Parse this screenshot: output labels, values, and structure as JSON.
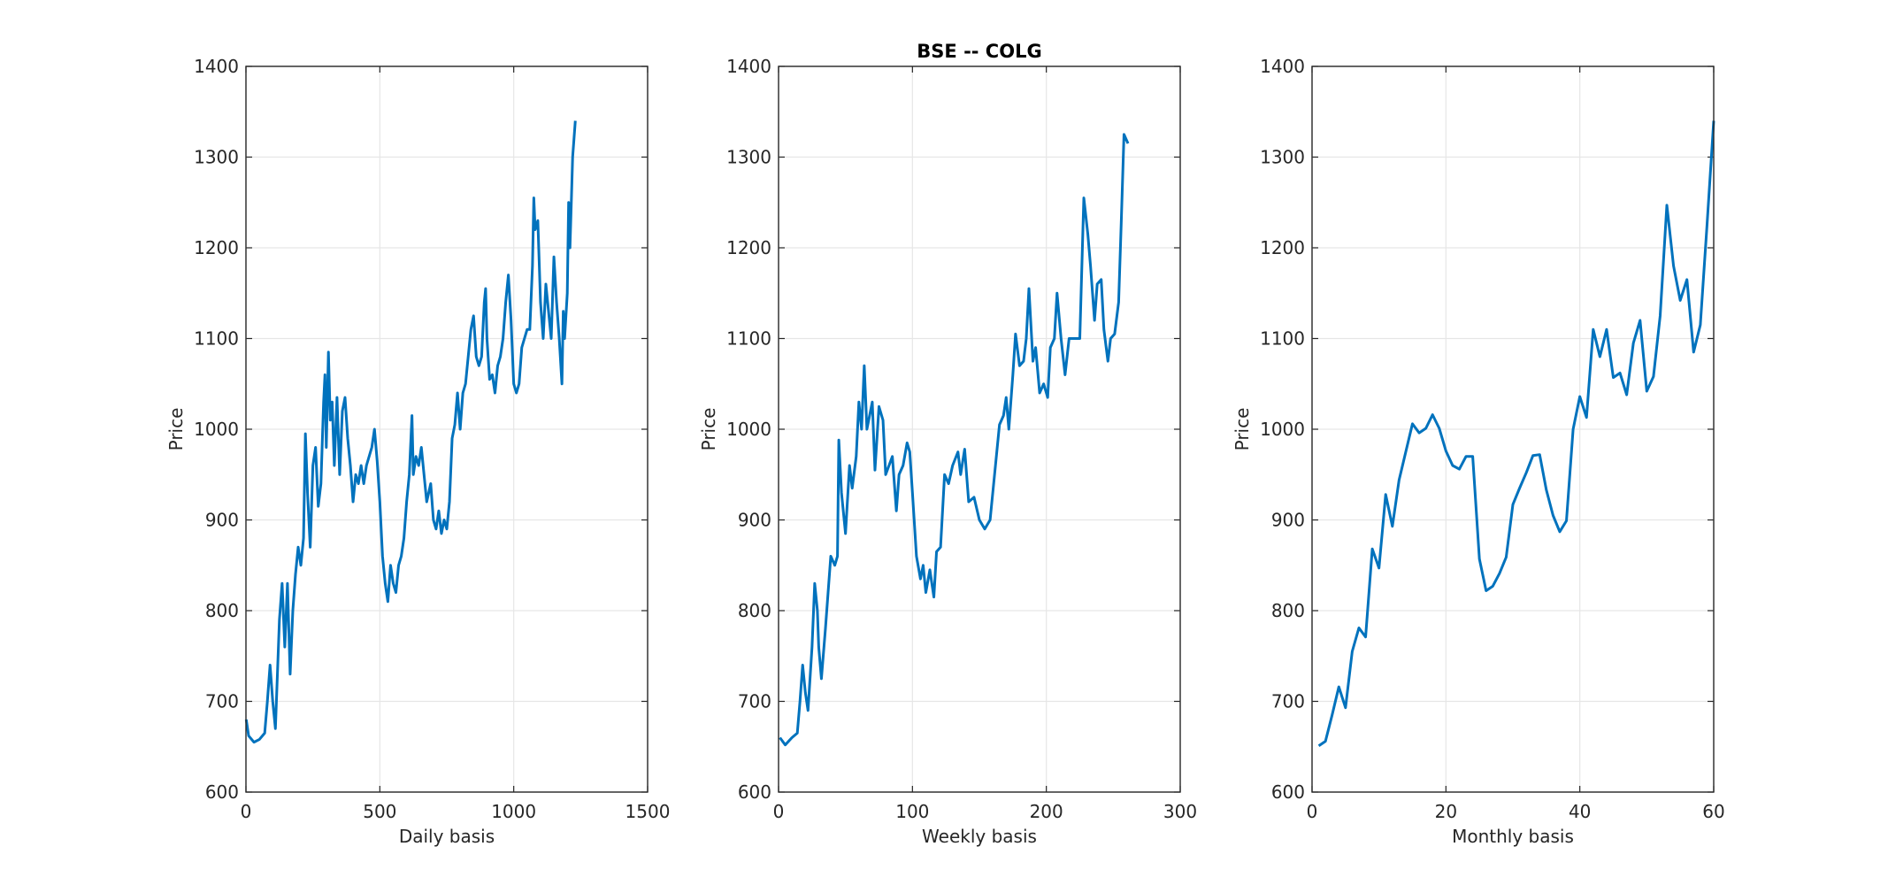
{
  "chart_data": [
    {
      "type": "line",
      "xlabel": "Daily basis",
      "ylabel": "Price",
      "color": "#0072bd",
      "grid": true,
      "xlim": [
        0,
        1500
      ],
      "ylim": [
        600,
        1400
      ],
      "xticks": [
        0,
        500,
        1000,
        1500
      ],
      "yticks": [
        600,
        700,
        800,
        900,
        1000,
        1100,
        1200,
        1300,
        1400
      ],
      "x": [
        1,
        10,
        30,
        50,
        70,
        80,
        90,
        100,
        110,
        125,
        135,
        145,
        155,
        165,
        175,
        185,
        195,
        205,
        215,
        222,
        230,
        240,
        250,
        260,
        270,
        280,
        290,
        295,
        300,
        308,
        315,
        322,
        330,
        340,
        350,
        360,
        370,
        380,
        390,
        400,
        410,
        420,
        430,
        440,
        450,
        470,
        480,
        490,
        500,
        510,
        520,
        530,
        540,
        550,
        560,
        570,
        580,
        590,
        600,
        610,
        620,
        625,
        635,
        645,
        655,
        665,
        675,
        690,
        700,
        710,
        720,
        730,
        740,
        750,
        760,
        770,
        780,
        790,
        800,
        810,
        820,
        830,
        840,
        850,
        860,
        870,
        880,
        890,
        895,
        900,
        910,
        920,
        930,
        940,
        950,
        960,
        970,
        980,
        990,
        1000,
        1010,
        1020,
        1030,
        1040,
        1050,
        1060,
        1070,
        1075,
        1080,
        1090,
        1100,
        1110,
        1120,
        1130,
        1140,
        1150,
        1160,
        1170,
        1180,
        1185,
        1190,
        1200,
        1205,
        1210,
        1220,
        1225,
        1230
      ],
      "values": [
        680,
        662,
        655,
        658,
        665,
        700,
        740,
        700,
        670,
        790,
        830,
        760,
        830,
        730,
        800,
        840,
        870,
        850,
        880,
        995,
        930,
        870,
        960,
        980,
        915,
        940,
        1030,
        1060,
        980,
        1085,
        1010,
        1030,
        960,
        1035,
        950,
        1020,
        1035,
        990,
        960,
        920,
        950,
        940,
        960,
        940,
        960,
        980,
        1000,
        965,
        920,
        860,
        830,
        810,
        850,
        830,
        820,
        850,
        860,
        880,
        920,
        950,
        1015,
        950,
        970,
        960,
        980,
        950,
        920,
        940,
        900,
        890,
        910,
        885,
        900,
        890,
        920,
        990,
        1005,
        1040,
        1000,
        1040,
        1050,
        1080,
        1110,
        1125,
        1080,
        1070,
        1080,
        1140,
        1155,
        1100,
        1055,
        1060,
        1040,
        1070,
        1080,
        1100,
        1140,
        1170,
        1120,
        1050,
        1040,
        1050,
        1090,
        1100,
        1110,
        1110,
        1180,
        1255,
        1220,
        1230,
        1140,
        1100,
        1160,
        1130,
        1100,
        1190,
        1140,
        1100,
        1050,
        1130,
        1100,
        1150,
        1250,
        1200,
        1300,
        1320,
        1340
      ]
    },
    {
      "type": "line",
      "title": "BSE -- COLG",
      "xlabel": "Weekly basis",
      "ylabel": "Price",
      "color": "#0072bd",
      "grid": true,
      "xlim": [
        0,
        300
      ],
      "ylim": [
        600,
        1400
      ],
      "xticks": [
        0,
        100,
        200,
        300
      ],
      "yticks": [
        600,
        700,
        800,
        900,
        1000,
        1100,
        1200,
        1300,
        1400
      ],
      "x": [
        1,
        5,
        10,
        14,
        16,
        18,
        20,
        22,
        25,
        27,
        29,
        30,
        32,
        35,
        37,
        39,
        42,
        44,
        45,
        47,
        50,
        53,
        55,
        58,
        60,
        62,
        64,
        66,
        70,
        72,
        75,
        78,
        80,
        85,
        88,
        90,
        93,
        96,
        98,
        100,
        103,
        106,
        108,
        110,
        113,
        116,
        118,
        121,
        124,
        127,
        130,
        134,
        136,
        139,
        142,
        146,
        150,
        154,
        158,
        162,
        165,
        168,
        170,
        172,
        175,
        177,
        180,
        183,
        185,
        187,
        190,
        192,
        195,
        198,
        201,
        203,
        206,
        208,
        211,
        214,
        217,
        220,
        225,
        228,
        231,
        233,
        236,
        238,
        241,
        243,
        246,
        248,
        251,
        254,
        256,
        258,
        261
      ],
      "values": [
        660,
        652,
        660,
        665,
        700,
        740,
        710,
        690,
        760,
        830,
        800,
        760,
        725,
        780,
        820,
        860,
        850,
        860,
        988,
        930,
        885,
        960,
        935,
        970,
        1030,
        1000,
        1070,
        1000,
        1030,
        955,
        1025,
        1010,
        950,
        970,
        910,
        950,
        960,
        985,
        975,
        930,
        860,
        835,
        850,
        820,
        845,
        815,
        865,
        870,
        950,
        940,
        960,
        975,
        950,
        978,
        920,
        925,
        900,
        890,
        900,
        960,
        1005,
        1015,
        1035,
        1000,
        1060,
        1105,
        1070,
        1075,
        1100,
        1155,
        1075,
        1090,
        1040,
        1050,
        1035,
        1090,
        1100,
        1150,
        1100,
        1060,
        1100,
        1100,
        1100,
        1255,
        1215,
        1180,
        1120,
        1160,
        1165,
        1110,
        1075,
        1100,
        1105,
        1140,
        1230,
        1325,
        1315
      ]
    },
    {
      "type": "line",
      "xlabel": "Monthly basis",
      "ylabel": "Price",
      "color": "#0072bd",
      "grid": true,
      "xlim": [
        0,
        60
      ],
      "ylim": [
        600,
        1400
      ],
      "xticks": [
        0,
        20,
        40,
        60
      ],
      "yticks": [
        600,
        700,
        800,
        900,
        1000,
        1100,
        1200,
        1300,
        1400
      ],
      "x": [
        1,
        2,
        3,
        4,
        5,
        6,
        7,
        8,
        9,
        10,
        11,
        12,
        13,
        14,
        15,
        16,
        17,
        18,
        19,
        20,
        21,
        22,
        23,
        24,
        25,
        26,
        27,
        28,
        29,
        30,
        31,
        32,
        33,
        34,
        35,
        36,
        37,
        38,
        39,
        40,
        41,
        42,
        43,
        44,
        45,
        46,
        47,
        48,
        49,
        50,
        51,
        52,
        53,
        54,
        55,
        56,
        57,
        58,
        59,
        60
      ],
      "values": [
        651,
        656,
        685,
        716,
        693,
        755,
        781,
        771,
        868,
        847,
        928,
        893,
        944,
        975,
        1006,
        996,
        1001,
        1016,
        1001,
        976,
        960,
        956,
        970,
        970,
        857,
        822,
        827,
        841,
        859,
        917,
        935,
        952,
        971,
        972,
        933,
        905,
        887,
        899,
        1000,
        1036,
        1013,
        1110,
        1080,
        1110,
        1057,
        1062,
        1038,
        1095,
        1120,
        1042,
        1058,
        1125,
        1247,
        1180,
        1142,
        1165,
        1085,
        1115,
        1225,
        1340
      ]
    }
  ]
}
